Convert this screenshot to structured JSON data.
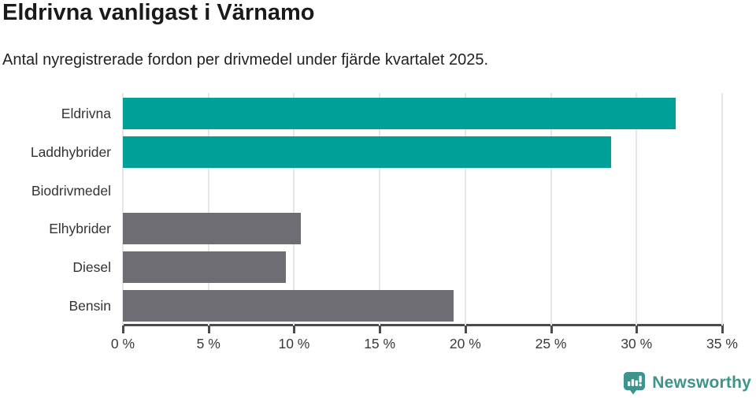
{
  "header": {
    "title": "Eldrivna vanligast i Värnamo",
    "subtitle": "Antal nyregistrerade fordon per drivmedel under fjärde kvartalet 2025."
  },
  "chart_data": {
    "type": "bar",
    "orientation": "horizontal",
    "title": "Eldrivna vanligast i Värnamo",
    "subtitle": "Antal nyregistrerade fordon per drivmedel under fjärde kvartalet 2025.",
    "categories": [
      "Eldrivna",
      "Laddhybrider",
      "Biodrivmedel",
      "Elhybrider",
      "Diesel",
      "Bensin"
    ],
    "values": [
      32.3,
      28.5,
      0,
      10.4,
      9.5,
      19.3
    ],
    "bar_colors": [
      "#00a099",
      "#00a099",
      "#6d6d73",
      "#6d6d73",
      "#6d6d73",
      "#6d6d73"
    ],
    "unit": "%",
    "xlabel": "",
    "ylabel": "",
    "xlim": [
      0,
      35
    ],
    "x_ticks": [
      0,
      5,
      10,
      15,
      20,
      25,
      30,
      35
    ],
    "x_tick_labels": [
      "0 %",
      "5 %",
      "10 %",
      "15 %",
      "20 %",
      "25 %",
      "30 %",
      "35 %"
    ],
    "grid": "vertical",
    "legend": "none"
  },
  "colors": {
    "highlight_teal": "#00a099",
    "neutral_gray": "#6d6d73",
    "gridline": "#e6e6e6",
    "axis": "#4a4a50",
    "brand_teal": "#3d948c"
  },
  "footer": {
    "brand": "Newsworthy",
    "logo_icon": "bar-chart-speech-bubble-icon"
  }
}
